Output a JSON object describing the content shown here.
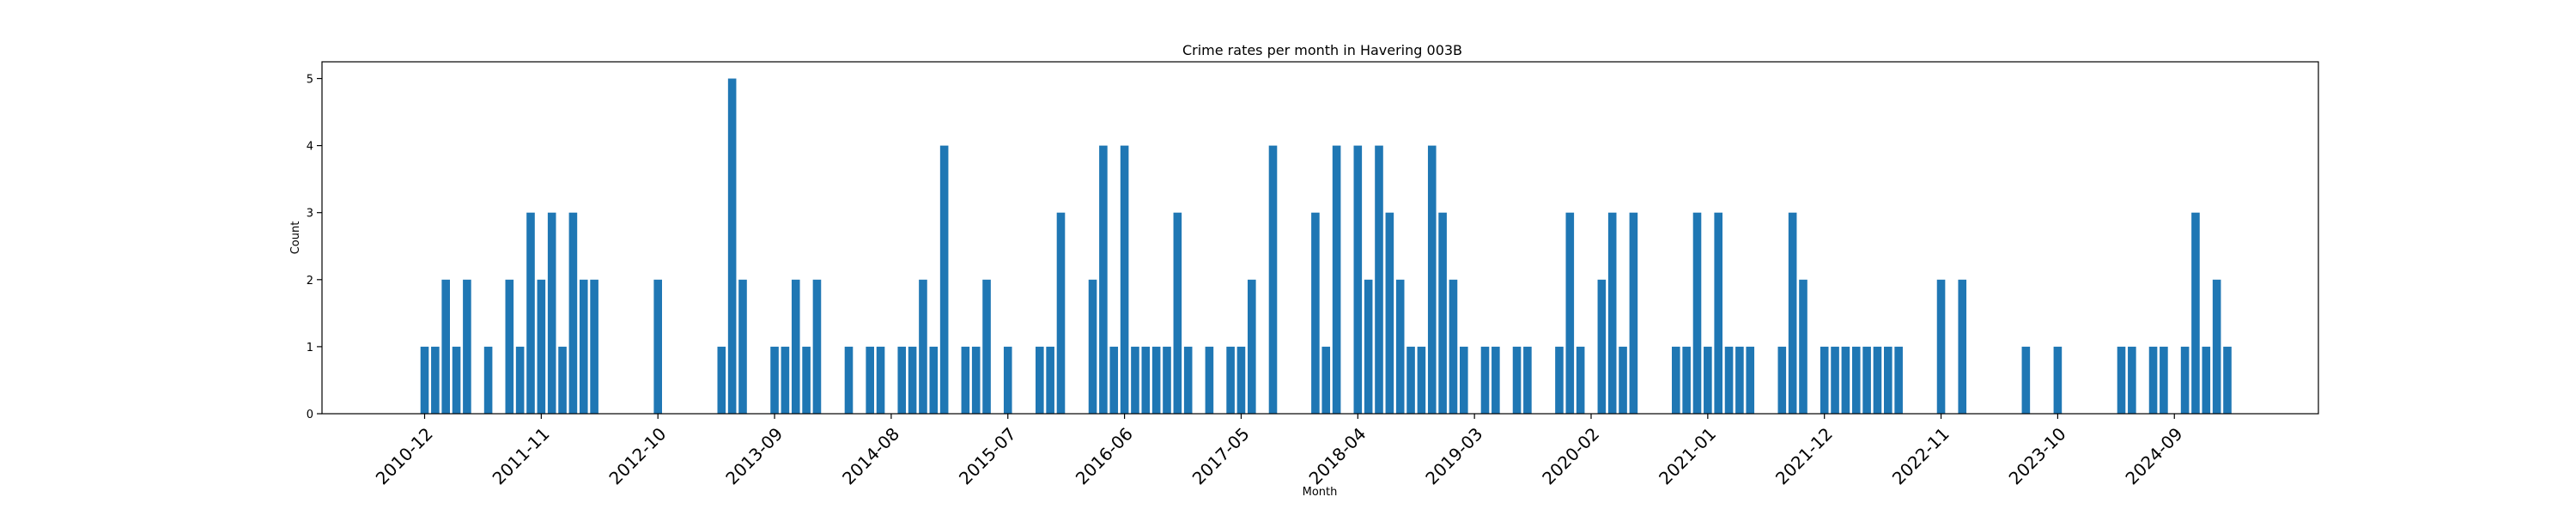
{
  "chart_data": {
    "type": "bar",
    "title": "Crime rates per month in Havering 003B",
    "xlabel": "Month",
    "ylabel": "Count",
    "ylim": [
      0,
      5.25
    ],
    "yticks": [
      0,
      1,
      2,
      3,
      4,
      5
    ],
    "x_ticks": [
      "2010-12",
      "2011-11",
      "2012-10",
      "2013-09",
      "2014-08",
      "2015-07",
      "2016-06",
      "2017-05",
      "2018-04",
      "2019-03",
      "2020-02",
      "2021-01",
      "2021-12",
      "2022-11",
      "2023-10",
      "2024-09"
    ],
    "grid": false,
    "bar_color": "#1f77b4",
    "categories": [
      "2010-12",
      "2011-01",
      "2011-02",
      "2011-03",
      "2011-04",
      "2011-06",
      "2011-08",
      "2011-09",
      "2011-10",
      "2011-11",
      "2011-12",
      "2012-01",
      "2012-02",
      "2012-03",
      "2012-04",
      "2012-10",
      "2013-04",
      "2013-05",
      "2013-06",
      "2013-09",
      "2013-10",
      "2013-11",
      "2013-12",
      "2014-01",
      "2014-04",
      "2014-06",
      "2014-07",
      "2014-09",
      "2014-10",
      "2014-11",
      "2014-12",
      "2015-01",
      "2015-03",
      "2015-04",
      "2015-05",
      "2015-07",
      "2015-10",
      "2015-11",
      "2015-12",
      "2016-03",
      "2016-04",
      "2016-05",
      "2016-06",
      "2016-07",
      "2016-08",
      "2016-09",
      "2016-10",
      "2016-11",
      "2016-12",
      "2017-02",
      "2017-04",
      "2017-05",
      "2017-06",
      "2017-08",
      "2017-12",
      "2018-01",
      "2018-02",
      "2018-04",
      "2018-05",
      "2018-06",
      "2018-07",
      "2018-08",
      "2018-09",
      "2018-10",
      "2018-11",
      "2018-12",
      "2019-01",
      "2019-02",
      "2019-04",
      "2019-05",
      "2019-07",
      "2019-08",
      "2019-11",
      "2019-12",
      "2020-01",
      "2020-03",
      "2020-04",
      "2020-05",
      "2020-06",
      "2020-10",
      "2020-11",
      "2020-12",
      "2021-01",
      "2021-02",
      "2021-03",
      "2021-04",
      "2021-05",
      "2021-08",
      "2021-09",
      "2021-10",
      "2021-12",
      "2022-01",
      "2022-02",
      "2022-03",
      "2022-04",
      "2022-05",
      "2022-06",
      "2022-07",
      "2022-11",
      "2023-01",
      "2023-07",
      "2023-10",
      "2024-04",
      "2024-05",
      "2024-07",
      "2024-08",
      "2024-10",
      "2024-11",
      "2024-12",
      "2025-01",
      "2025-02"
    ],
    "values": [
      1,
      1,
      2,
      1,
      2,
      1,
      2,
      1,
      3,
      2,
      3,
      1,
      3,
      2,
      2,
      2,
      1,
      5,
      2,
      1,
      1,
      2,
      1,
      2,
      1,
      1,
      1,
      1,
      1,
      2,
      1,
      4,
      1,
      1,
      2,
      1,
      1,
      1,
      3,
      2,
      4,
      1,
      4,
      1,
      1,
      1,
      1,
      3,
      1,
      1,
      1,
      1,
      2,
      4,
      3,
      1,
      4,
      4,
      2,
      4,
      3,
      2,
      1,
      1,
      4,
      3,
      2,
      1,
      1,
      1,
      1,
      1,
      1,
      3,
      1,
      2,
      3,
      1,
      3,
      1,
      1,
      3,
      1,
      3,
      1,
      1,
      1,
      1,
      3,
      2,
      1,
      1,
      1,
      1,
      1,
      1,
      1,
      1,
      2,
      2,
      1,
      1,
      1,
      1,
      1,
      1,
      1,
      3,
      1,
      2,
      1
    ]
  }
}
